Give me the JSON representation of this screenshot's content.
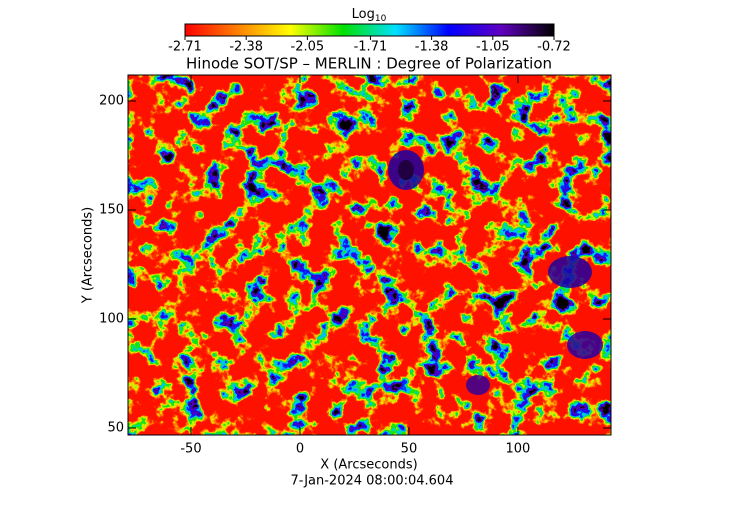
{
  "chart_data": {
    "type": "image",
    "title": "Hinode SOT/SP – MERLIN : Degree of Polarization",
    "subtitle": "7-Jan-2024 08:00:04.604",
    "x_label": "X (Arcseconds)",
    "y_label": "Y (Arcseconds)",
    "xlim": [
      -78.9,
      142.7
    ],
    "ylim": [
      46.8,
      211.9
    ],
    "xticks": [
      -50,
      0,
      50,
      100
    ],
    "yticks": [
      50,
      100,
      150,
      200
    ],
    "colorbar": {
      "label": "Log",
      "label_subscript": "10",
      "lim": [
        -2.71,
        -0.72
      ],
      "ticks": [
        -2.71,
        -2.38,
        -2.05,
        -1.71,
        -1.38,
        -1.05,
        -0.72
      ],
      "colormap": [
        "#ff0000",
        "#ff8000",
        "#ffff00",
        "#00e000",
        "#00e0ff",
        "#0000ff",
        "#6000c0",
        "#000000"
      ]
    }
  }
}
